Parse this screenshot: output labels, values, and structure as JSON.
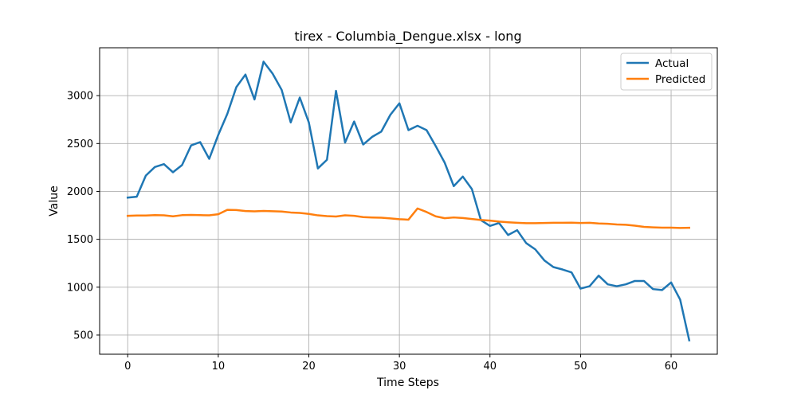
{
  "chart_data": {
    "type": "line",
    "title": "tirex - Columbia_Dengue.xlsx - long",
    "xlabel": "Time Steps",
    "ylabel": "Value",
    "xlim": [
      -3.1,
      65.1
    ],
    "ylim": [
      300,
      3500
    ],
    "xticks": [
      0,
      10,
      20,
      30,
      40,
      50,
      60
    ],
    "yticks": [
      500,
      1000,
      1500,
      2000,
      2500,
      3000
    ],
    "grid": true,
    "legend": "top-right",
    "series": [
      {
        "name": "Actual",
        "color": "#1f77b4",
        "values": [
          1935,
          1945,
          2165,
          2255,
          2285,
          2200,
          2275,
          2480,
          2515,
          2340,
          2590,
          2810,
          3090,
          3220,
          2960,
          3355,
          3230,
          3060,
          2720,
          2980,
          2720,
          2240,
          2330,
          3050,
          2510,
          2730,
          2490,
          2570,
          2625,
          2800,
          2920,
          2640,
          2685,
          2640,
          2475,
          2300,
          2055,
          2155,
          2025,
          1700,
          1640,
          1670,
          1545,
          1595,
          1460,
          1395,
          1280,
          1210,
          1185,
          1155,
          985,
          1010,
          1120,
          1030,
          1010,
          1030,
          1065,
          1065,
          980,
          970,
          1050,
          870,
          445
        ]
      },
      {
        "name": "Predicted",
        "color": "#ff7f0e",
        "values": [
          1745,
          1748,
          1748,
          1752,
          1750,
          1740,
          1752,
          1755,
          1752,
          1750,
          1762,
          1808,
          1805,
          1795,
          1792,
          1796,
          1793,
          1790,
          1780,
          1775,
          1765,
          1750,
          1742,
          1738,
          1750,
          1745,
          1732,
          1728,
          1725,
          1718,
          1710,
          1705,
          1822,
          1785,
          1740,
          1720,
          1728,
          1722,
          1712,
          1702,
          1695,
          1685,
          1678,
          1672,
          1668,
          1668,
          1670,
          1672,
          1672,
          1673,
          1670,
          1672,
          1665,
          1662,
          1655,
          1652,
          1642,
          1630,
          1625,
          1622,
          1622,
          1618,
          1620
        ]
      }
    ]
  }
}
